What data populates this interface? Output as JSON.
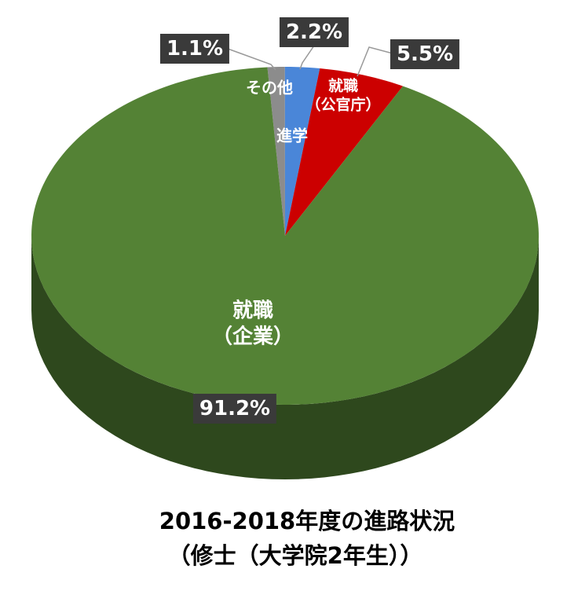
{
  "chart_data": {
    "type": "pie3d",
    "title": [
      "2016-2018年度の進路状況",
      "（修士（大学院2年生））"
    ],
    "categories": [
      "その他",
      "進学",
      "就職\n（公官庁）",
      "就職\n（企業）"
    ],
    "values": [
      1.1,
      2.2,
      5.5,
      91.2
    ],
    "value_labels": [
      "1.1%",
      "2.2%",
      "5.5%",
      "91.2%"
    ],
    "colors": [
      "#8c8c8c",
      "#4a86d8",
      "#cc0000",
      "#548235"
    ]
  }
}
